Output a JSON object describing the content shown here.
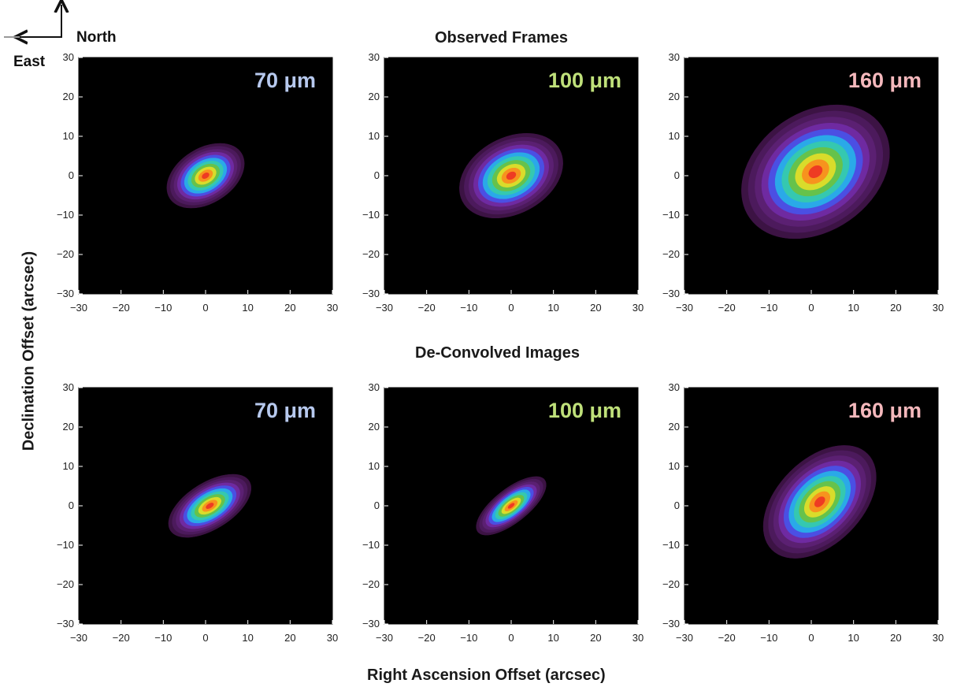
{
  "compass": {
    "north": "North",
    "east": "East"
  },
  "titles": {
    "top": "Observed Frames",
    "bottom": "De-Convolved Images"
  },
  "axes": {
    "xlabel": "Right  Ascension Offset (arcsec)",
    "ylabel": "Declination Offset (arcsec)"
  },
  "chart_data": [
    {
      "type": "heatmap",
      "row": "observed",
      "label": "70 μm",
      "label_color": "#b7c9ee",
      "xlim": [
        -30,
        30
      ],
      "ylim": [
        -30,
        30
      ],
      "xticks": [
        -30,
        -20,
        -10,
        0,
        10,
        20,
        30
      ],
      "yticks": [
        -30,
        -20,
        -10,
        0,
        10,
        20,
        30
      ],
      "peak": [
        0,
        0
      ],
      "semi_major": 10,
      "semi_minor": 6.5,
      "orientation_deg": -32,
      "levels": 11
    },
    {
      "type": "heatmap",
      "row": "observed",
      "label": "100 μm",
      "label_color": "#bfe07a",
      "xlim": [
        -30,
        30
      ],
      "ylim": [
        -30,
        30
      ],
      "xticks": [
        -30,
        -20,
        -10,
        0,
        10,
        20,
        30
      ],
      "yticks": [
        -30,
        -20,
        -10,
        0,
        10,
        20,
        30
      ],
      "peak": [
        0,
        0
      ],
      "semi_major": 13,
      "semi_minor": 9,
      "orientation_deg": -28,
      "levels": 11
    },
    {
      "type": "heatmap",
      "row": "observed",
      "label": "160 μm",
      "label_color": "#f4b8bc",
      "xlim": [
        -30,
        30
      ],
      "ylim": [
        -30,
        30
      ],
      "xticks": [
        -30,
        -20,
        -10,
        0,
        10,
        20,
        30
      ],
      "yticks": [
        -30,
        -20,
        -10,
        0,
        10,
        20,
        30
      ],
      "peak": [
        1,
        1
      ],
      "semi_major": 19,
      "semi_minor": 14,
      "orientation_deg": -35,
      "levels": 11
    },
    {
      "type": "heatmap",
      "row": "deconvolved",
      "label": "70 μm",
      "label_color": "#b7c9ee",
      "xlim": [
        -30,
        30
      ],
      "ylim": [
        -30,
        30
      ],
      "xticks": [
        -30,
        -20,
        -10,
        0,
        10,
        20,
        30
      ],
      "yticks": [
        -30,
        -20,
        -10,
        0,
        10,
        20,
        30
      ],
      "peak": [
        1,
        0
      ],
      "semi_major": 11,
      "semi_minor": 5.5,
      "orientation_deg": -32,
      "levels": 11
    },
    {
      "type": "heatmap",
      "row": "deconvolved",
      "label": "100 μm",
      "label_color": "#bfe07a",
      "xlim": [
        -30,
        30
      ],
      "ylim": [
        -30,
        30
      ],
      "xticks": [
        -30,
        -20,
        -10,
        0,
        10,
        20,
        30
      ],
      "yticks": [
        -30,
        -20,
        -10,
        0,
        10,
        20,
        30
      ],
      "peak": [
        0,
        0
      ],
      "semi_major": 10,
      "semi_minor": 4,
      "orientation_deg": -38,
      "levels": 11
    },
    {
      "type": "heatmap",
      "row": "deconvolved",
      "label": "160 μm",
      "label_color": "#f4b8bc",
      "xlim": [
        -30,
        30
      ],
      "ylim": [
        -30,
        30
      ],
      "xticks": [
        -30,
        -20,
        -10,
        0,
        10,
        20,
        30
      ],
      "yticks": [
        -30,
        -20,
        -10,
        0,
        10,
        20,
        30
      ],
      "peak": [
        2,
        1
      ],
      "semi_major": 16,
      "semi_minor": 10,
      "orientation_deg": -45,
      "levels": 11
    }
  ],
  "colors": {
    "background": "#000000",
    "levels": [
      "#3c1344",
      "#4c1a5c",
      "#5b2072",
      "#6f2aa1",
      "#4b4fe3",
      "#2aa9e8",
      "#35c8b0",
      "#66c24b",
      "#d9dc2b",
      "#f7931e",
      "#ee3b23",
      "#e11b1b"
    ]
  }
}
